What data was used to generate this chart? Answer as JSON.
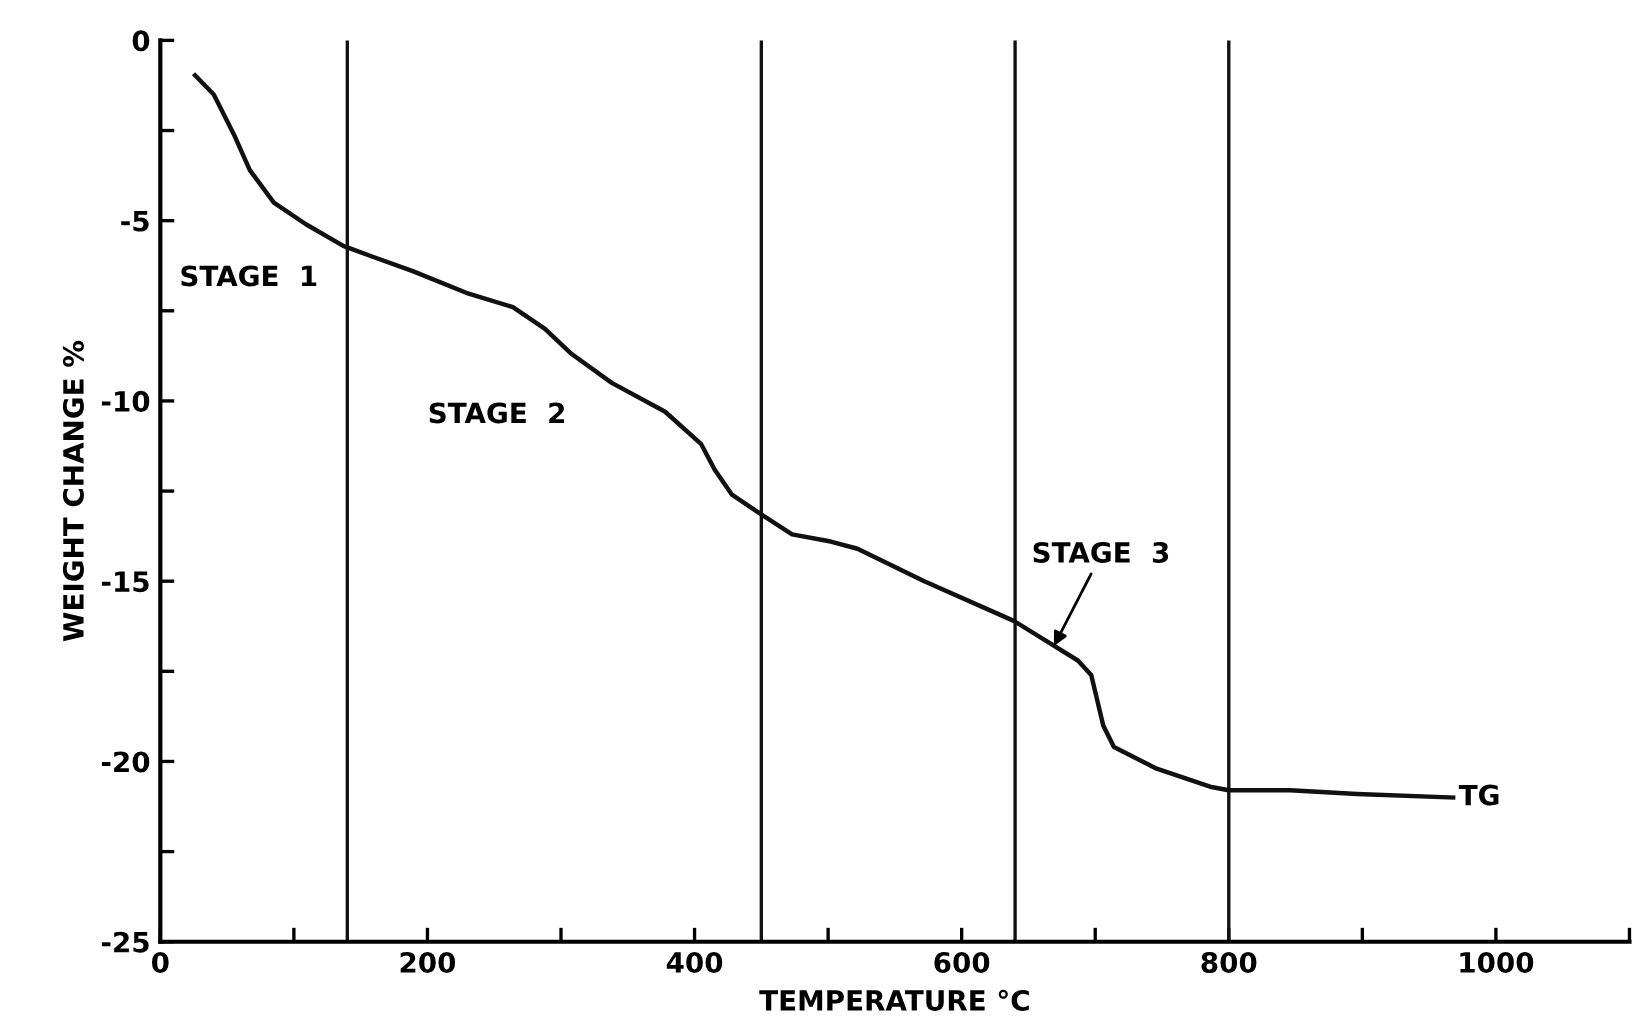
{
  "chart_data": {
    "type": "line",
    "xlabel": "TEMPERATURE °C",
    "ylabel": "WEIGHT CHANGE %",
    "xlim": [
      0,
      1100
    ],
    "xticks": [
      0,
      {
        "value": 100,
        "label": null
      },
      200,
      {
        "value": 300,
        "label": null
      },
      400,
      {
        "value": 500,
        "label": null
      },
      600,
      {
        "value": 700,
        "label": null
      },
      800,
      {
        "value": 900,
        "label": null
      },
      1000,
      {
        "value": 1100,
        "label": null
      }
    ],
    "ylim": [
      -25,
      0
    ],
    "yticks": [
      -25,
      {
        "value": -22.5,
        "label": null
      },
      -20,
      {
        "value": -17.5,
        "label": null
      },
      -15,
      {
        "value": -12.5,
        "label": null
      },
      -10,
      {
        "value": -7.5,
        "label": null
      },
      -5,
      {
        "value": -2.5,
        "label": null
      },
      0
    ],
    "grid": false,
    "legend": false,
    "marker": "none",
    "line_style": "solid",
    "series": [
      {
        "color": "#111111",
        "x": [
          26,
          40,
          55,
          67,
          85,
          109,
          137,
          159,
          189,
          229,
          264,
          288,
          308,
          338,
          378,
          405,
          415,
          428,
          448,
          473,
          502,
          522,
          572,
          639,
          687,
          697,
          706,
          714,
          746,
          786,
          800,
          846,
          896,
          968
        ],
        "values": [
          -0.97,
          -1.5,
          -2.6,
          -3.6,
          -4.5,
          -5.1,
          -5.7,
          -6.0,
          -6.4,
          -7.0,
          -7.4,
          -8.0,
          -8.7,
          -9.5,
          -10.3,
          -11.2,
          -11.9,
          -12.6,
          -13.1,
          -13.7,
          -13.9,
          -14.1,
          -15.0,
          -16.1,
          -17.2,
          -17.6,
          -19.0,
          -19.6,
          -20.2,
          -20.7,
          -20.8,
          -20.8,
          -20.9,
          -21.0
        ]
      }
    ],
    "ref_lines": [
      {
        "axis": "x",
        "value": 140,
        "color": "#111111"
      },
      {
        "axis": "x",
        "value": 450,
        "color": "#111111"
      },
      {
        "axis": "x",
        "value": 640,
        "color": "#111111"
      },
      {
        "axis": "x",
        "value": 800,
        "color": "#111111"
      }
    ],
    "annotations": [
      "STAGE  1",
      "STAGE  2",
      {
        "text": "STAGE  3",
        "x": 669,
        "y": -16.8
      },
      {
        "text": "TG",
        "x": 968,
        "y": -21.0
      }
    ]
  }
}
